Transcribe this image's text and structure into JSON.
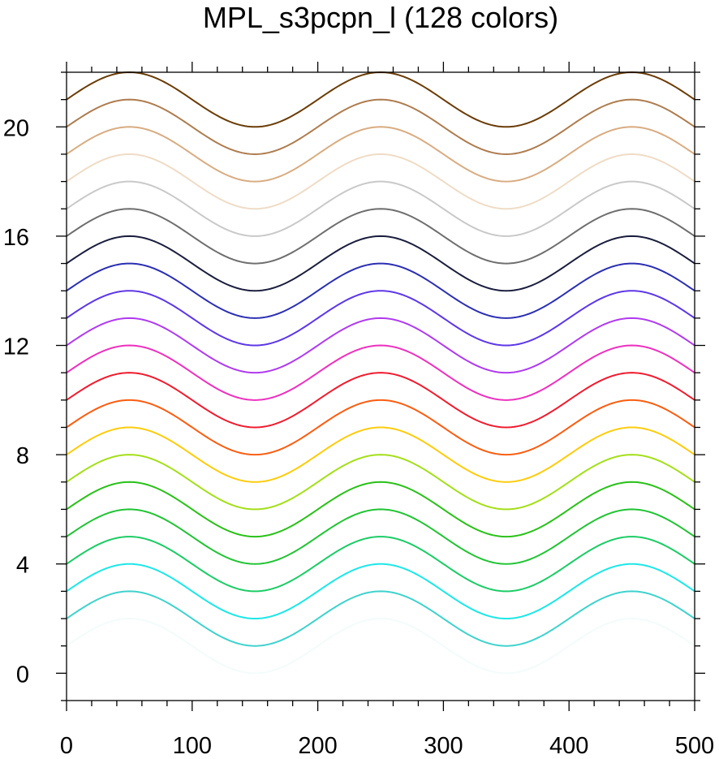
{
  "chart_data": {
    "type": "line",
    "title": "MPL_s3pcpn_l (128 colors)",
    "xlabel": "",
    "ylabel": "",
    "xlim": [
      0,
      500
    ],
    "ylim": [
      -1,
      22
    ],
    "x_ticks": [
      0,
      100,
      200,
      300,
      400,
      500
    ],
    "y_ticks": [
      0,
      4,
      8,
      12,
      16,
      20
    ],
    "x_minor_step": 20,
    "y_minor_step": 1,
    "grid": false,
    "series_function": "y = offset + sin(2*pi*x/200)",
    "series": [
      {
        "offset": 1,
        "color": "#f3fbfb"
      },
      {
        "offset": 2,
        "color": "#3fd2cd"
      },
      {
        "offset": 3,
        "color": "#1de7e7"
      },
      {
        "offset": 4,
        "color": "#1ccc66"
      },
      {
        "offset": 5,
        "color": "#21c434"
      },
      {
        "offset": 6,
        "color": "#29c118"
      },
      {
        "offset": 7,
        "color": "#a4df19"
      },
      {
        "offset": 8,
        "color": "#fdcc0d"
      },
      {
        "offset": 9,
        "color": "#fa5d10"
      },
      {
        "offset": 10,
        "color": "#f01b2e"
      },
      {
        "offset": 11,
        "color": "#ee2fbf"
      },
      {
        "offset": 12,
        "color": "#b03aef"
      },
      {
        "offset": 13,
        "color": "#5d37e7"
      },
      {
        "offset": 14,
        "color": "#2b2fb1"
      },
      {
        "offset": 15,
        "color": "#1a1d3d"
      },
      {
        "offset": 16,
        "color": "#6e6e6e"
      },
      {
        "offset": 17,
        "color": "#c9c9c9"
      },
      {
        "offset": 18,
        "color": "#efdcc6"
      },
      {
        "offset": 19,
        "color": "#d8ac81"
      },
      {
        "offset": 20,
        "color": "#ae7c4e"
      },
      {
        "offset": 21,
        "color": "#6a3c06"
      }
    ]
  }
}
